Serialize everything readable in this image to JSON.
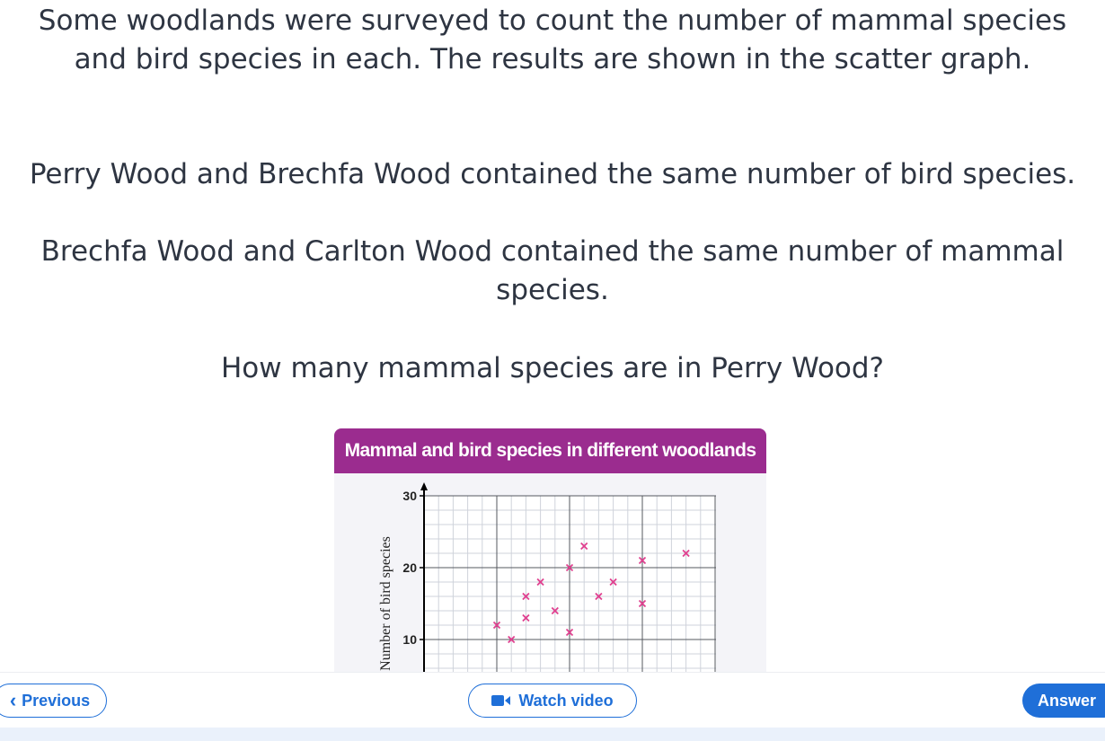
{
  "question": {
    "intro": "Some woodlands were surveyed to count the number of mammal species and bird species in each. The results are shown in the scatter graph.",
    "info1": "Perry Wood and Brechfa Wood contained the same number of bird species.",
    "info2": "Brechfa Wood and Carlton Wood contained the same number of mammal species.",
    "ask": "How many mammal species are in Perry Wood?"
  },
  "chart_data": {
    "type": "scatter",
    "title": "Mammal and bird species in different woodlands",
    "ylabel": "Number of bird species",
    "xlabel": "",
    "yticks": [
      "30",
      "20",
      "10"
    ],
    "grid": true,
    "marker_color": "#e0408f",
    "points": [
      {
        "x": 5,
        "y": 12
      },
      {
        "x": 6,
        "y": 10
      },
      {
        "x": 7,
        "y": 13
      },
      {
        "x": 7,
        "y": 16
      },
      {
        "x": 8,
        "y": 18
      },
      {
        "x": 9,
        "y": 14
      },
      {
        "x": 10,
        "y": 11
      },
      {
        "x": 10,
        "y": 20
      },
      {
        "x": 11,
        "y": 23
      },
      {
        "x": 12,
        "y": 16
      },
      {
        "x": 13,
        "y": 18
      },
      {
        "x": 15,
        "y": 15
      },
      {
        "x": 15,
        "y": 21
      },
      {
        "x": 18,
        "y": 22
      }
    ]
  },
  "nav": {
    "previous_label": "Previous",
    "video_label": "Watch video",
    "answer_label": "Answer"
  },
  "colors": {
    "accent": "#1f6fd8",
    "header": "#9b2c8f"
  }
}
